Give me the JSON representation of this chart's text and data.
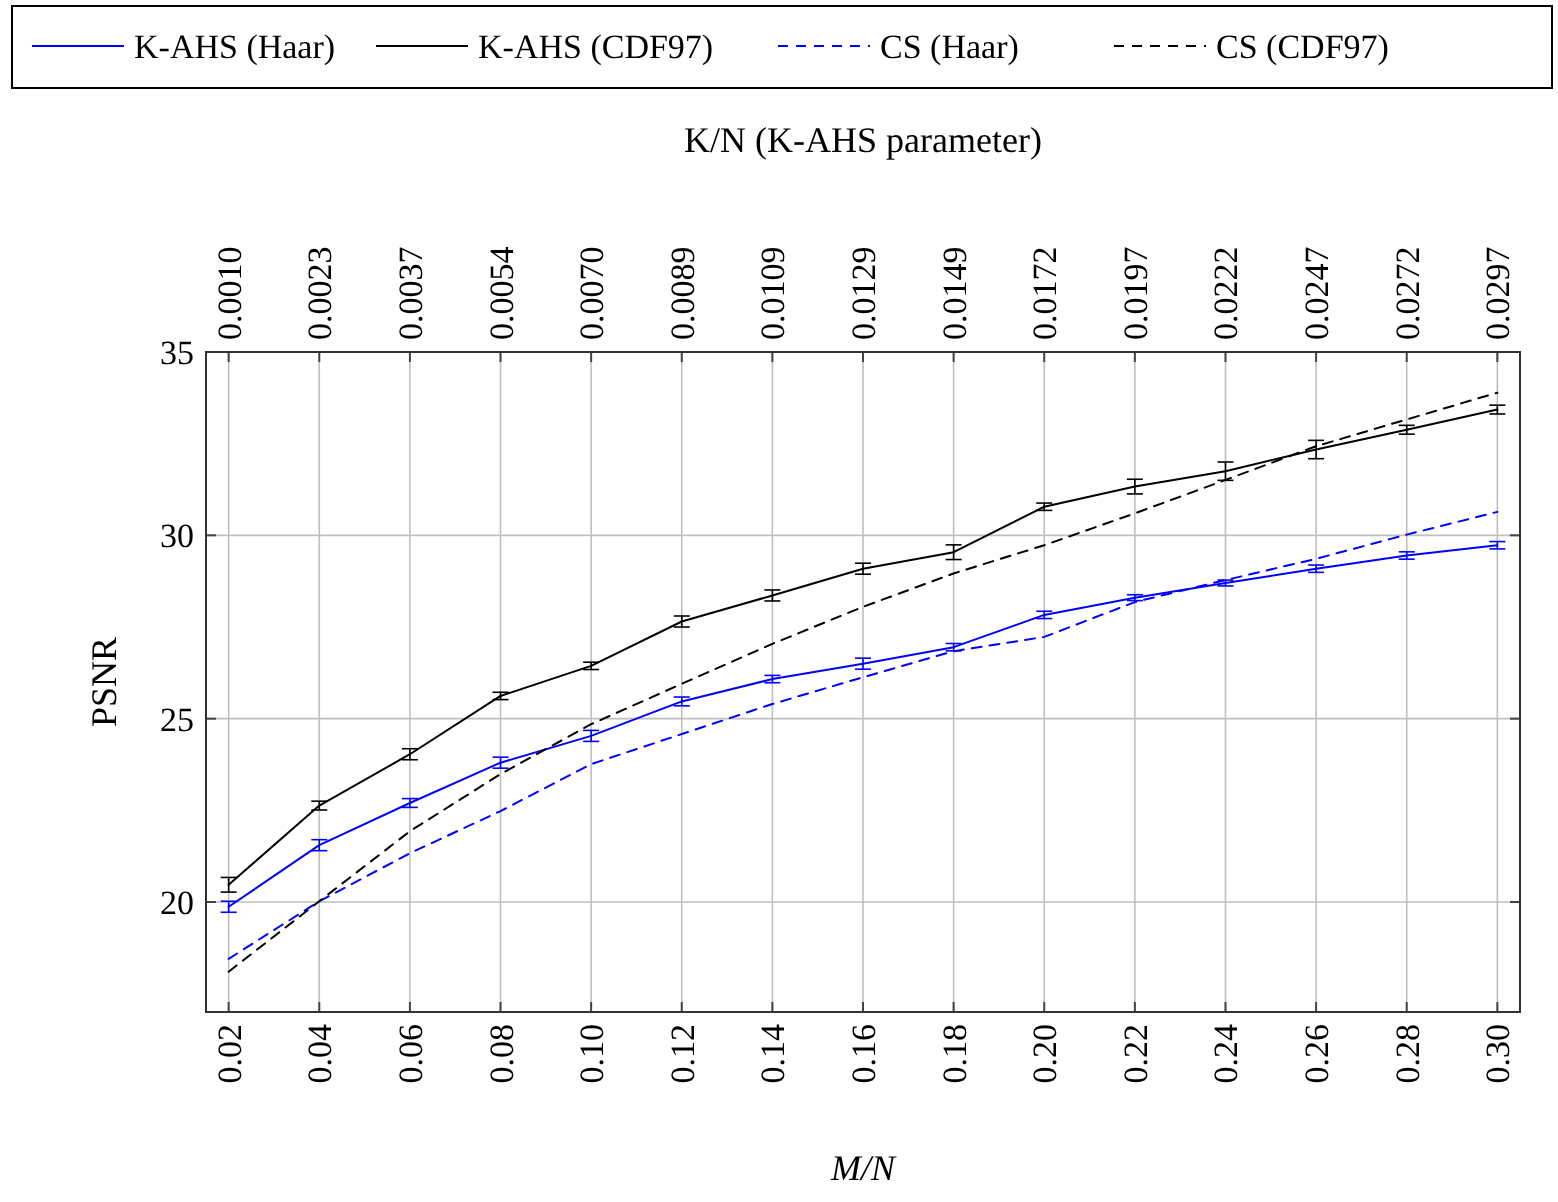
{
  "chart_data": {
    "type": "line",
    "xlabel": "M/N",
    "ylabel": "PSNR",
    "x2label": "K/N (K-AHS parameter)",
    "x": [
      0.02,
      0.04,
      0.06,
      0.08,
      0.1,
      0.12,
      0.14,
      0.16,
      0.18,
      0.2,
      0.22,
      0.24,
      0.26,
      0.28,
      0.3
    ],
    "xlim": [
      0.015,
      0.305
    ],
    "ylim": [
      17,
      35
    ],
    "xticks": [
      {
        "value": 0.02,
        "label": "0.02"
      },
      {
        "value": 0.04,
        "label": "0.04"
      },
      {
        "value": 0.06,
        "label": "0.06"
      },
      {
        "value": 0.08,
        "label": "0.08"
      },
      {
        "value": 0.1,
        "label": "0.10"
      },
      {
        "value": 0.12,
        "label": "0.12"
      },
      {
        "value": 0.14,
        "label": "0.14"
      },
      {
        "value": 0.16,
        "label": "0.16"
      },
      {
        "value": 0.18,
        "label": "0.18"
      },
      {
        "value": 0.2,
        "label": "0.20"
      },
      {
        "value": 0.22,
        "label": "0.22"
      },
      {
        "value": 0.24,
        "label": "0.24"
      },
      {
        "value": 0.26,
        "label": "0.26"
      },
      {
        "value": 0.28,
        "label": "0.28"
      },
      {
        "value": 0.3,
        "label": "0.30"
      }
    ],
    "annotations": [
      {
        "text": "0.0010",
        "x": 0.02
      },
      {
        "text": "0.0023",
        "x": 0.04
      },
      {
        "text": "0.0037",
        "x": 0.06
      },
      {
        "text": "0.0054",
        "x": 0.08
      },
      {
        "text": "0.0070",
        "x": 0.1
      },
      {
        "text": "0.0089",
        "x": 0.12
      },
      {
        "text": "0.0109",
        "x": 0.14
      },
      {
        "text": "0.0129",
        "x": 0.16
      },
      {
        "text": "0.0149",
        "x": 0.18
      },
      {
        "text": "0.0172",
        "x": 0.2
      },
      {
        "text": "0.0197",
        "x": 0.22
      },
      {
        "text": "0.0222",
        "x": 0.24
      },
      {
        "text": "0.0247",
        "x": 0.26
      },
      {
        "text": "0.0272",
        "x": 0.28
      },
      {
        "text": "0.0297",
        "x": 0.3
      }
    ],
    "yticks": [
      20,
      25,
      30,
      35
    ],
    "grid": true,
    "legend": "top",
    "marker": "none",
    "series": [
      {
        "name": "K-AHS (Haar)",
        "color": "#0000ff",
        "line_style": "solid",
        "values": [
          19.87,
          21.55,
          22.7,
          23.8,
          24.53,
          25.47,
          26.08,
          26.5,
          26.95,
          27.83,
          28.3,
          28.7,
          29.09,
          29.45,
          29.73
        ],
        "errors": [
          0.15,
          0.15,
          0.12,
          0.15,
          0.15,
          0.12,
          0.1,
          0.15,
          0.1,
          0.1,
          0.08,
          0.08,
          0.1,
          0.1,
          0.1
        ]
      },
      {
        "name": "K-AHS (CDF97)",
        "color": "#000000",
        "line_style": "solid",
        "values": [
          20.47,
          22.63,
          24.03,
          25.62,
          26.44,
          27.65,
          28.36,
          29.09,
          29.54,
          30.78,
          31.33,
          31.75,
          32.34,
          32.88,
          33.43
        ],
        "errors": [
          0.2,
          0.12,
          0.15,
          0.1,
          0.1,
          0.15,
          0.15,
          0.15,
          0.2,
          0.1,
          0.2,
          0.25,
          0.25,
          0.12,
          0.12
        ]
      },
      {
        "name": "CS (Haar)",
        "color": "#0000ff",
        "line_style": "dashed",
        "values": [
          18.45,
          20.02,
          21.33,
          22.48,
          23.76,
          24.58,
          25.4,
          26.13,
          26.84,
          27.23,
          28.18,
          28.78,
          29.36,
          30.02,
          30.64
        ]
      },
      {
        "name": "CS (CDF97)",
        "color": "#000000",
        "line_style": "dashed",
        "values": [
          18.1,
          20.02,
          21.93,
          23.49,
          24.85,
          25.95,
          27.04,
          28.05,
          28.96,
          29.73,
          30.6,
          31.51,
          32.43,
          33.16,
          33.89
        ]
      }
    ]
  }
}
